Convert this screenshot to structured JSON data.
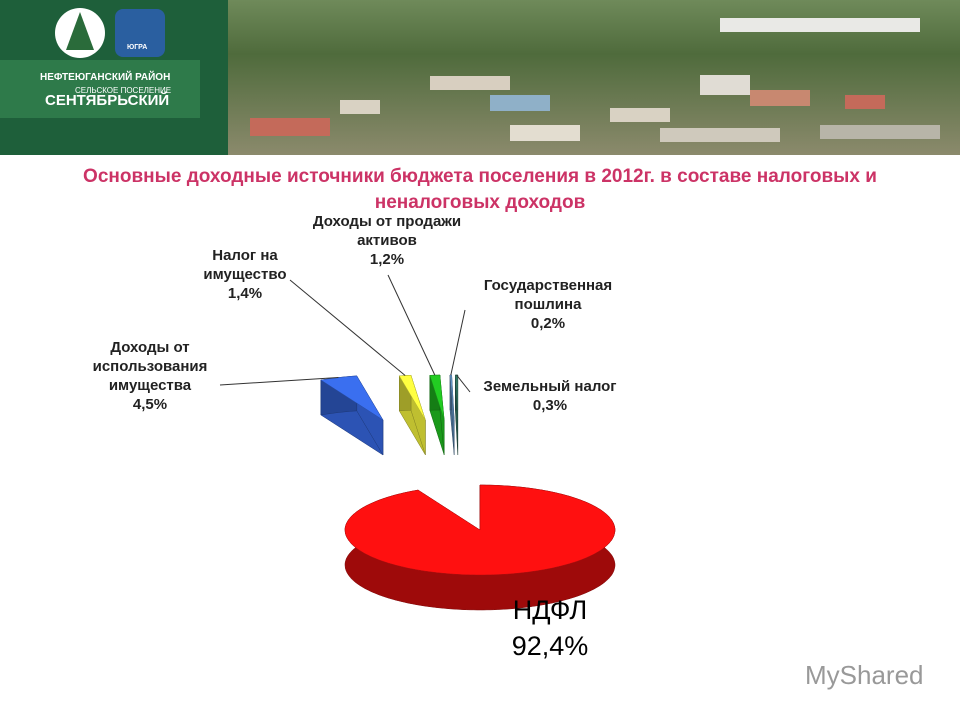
{
  "header": {
    "district": "НЕФТЕЮГАНСКИЙ РАЙОН",
    "settlement_type": "СЕЛЬСКОЕ ПОСЕЛЕНИЕ",
    "settlement": "СЕНТЯБРЬСКИЙ",
    "emblem": "ЮГРА"
  },
  "watermark": "MyShared",
  "chart_data": {
    "type": "pie3d",
    "title": "Основные доходные источники бюджета поселения в 2012г. в составе налоговых и неналоговых доходов",
    "categories": [
      "НДФЛ",
      "Доходы от использования имущества",
      "Налог на имущество",
      "Доходы от продажи активов",
      "Государственная пошлина",
      "Земельный налог"
    ],
    "values": [
      92.4,
      4.5,
      1.4,
      1.2,
      0.2,
      0.3
    ],
    "value_labels": [
      "92,4%",
      "4,5%",
      "1,4%",
      "1,2%",
      "0,2%",
      "0,3%"
    ],
    "colors": [
      "#ff1010",
      "#3a6ff0",
      "#ffff40",
      "#22cc22",
      "#6699cc",
      "#337766"
    ]
  }
}
